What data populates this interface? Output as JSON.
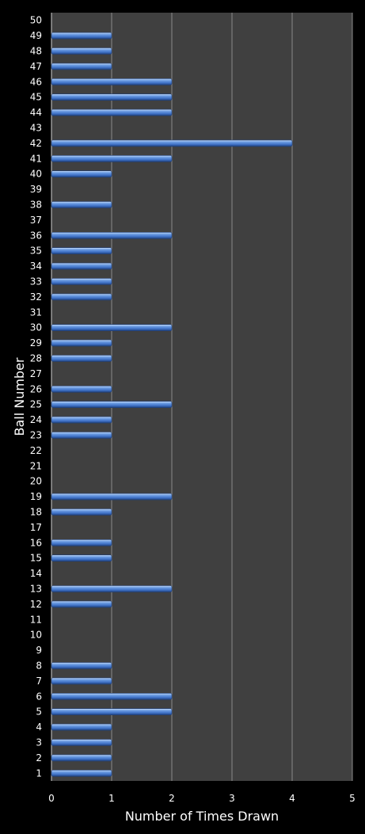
{
  "chart_data": {
    "type": "bar",
    "orientation": "horizontal",
    "xlabel": "Number of Times Drawn",
    "ylabel": "Ball Number",
    "xlim": [
      0,
      5
    ],
    "x_ticks": [
      0,
      1,
      2,
      3,
      4,
      5
    ],
    "grid": true,
    "colors": {
      "background": "#000000",
      "plot_area": "#404040",
      "bar": "#4a7fd0",
      "bar_highlight": "#9cc3f2",
      "bar_shadow": "#1f3f78",
      "gridline": "#8a8a8a",
      "text": "#ffffff"
    },
    "categories": [
      "1",
      "2",
      "3",
      "4",
      "5",
      "6",
      "7",
      "8",
      "9",
      "10",
      "11",
      "12",
      "13",
      "14",
      "15",
      "16",
      "17",
      "18",
      "19",
      "20",
      "21",
      "22",
      "23",
      "24",
      "25",
      "26",
      "27",
      "28",
      "29",
      "30",
      "31",
      "32",
      "33",
      "34",
      "35",
      "36",
      "37",
      "38",
      "39",
      "40",
      "41",
      "42",
      "43",
      "44",
      "45",
      "46",
      "47",
      "48",
      "49",
      "50"
    ],
    "values": [
      1,
      1,
      1,
      1,
      2,
      2,
      1,
      1,
      0,
      0,
      0,
      1,
      2,
      0,
      1,
      1,
      0,
      1,
      2,
      0,
      0,
      0,
      1,
      1,
      2,
      1,
      0,
      1,
      1,
      2,
      0,
      1,
      1,
      1,
      1,
      2,
      0,
      1,
      0,
      1,
      2,
      4,
      0,
      2,
      2,
      2,
      1,
      1,
      1,
      0
    ]
  }
}
